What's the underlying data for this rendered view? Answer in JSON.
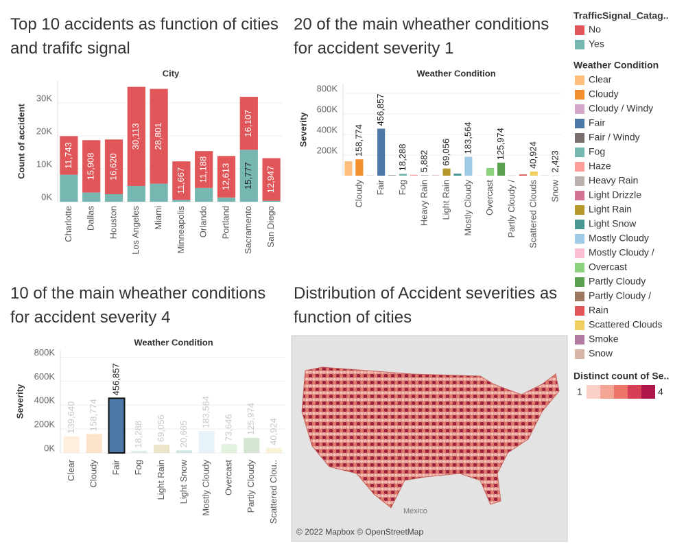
{
  "chart_data": [
    {
      "type": "stacked_bar",
      "title": "Top 10 accidents as function of cities and trafifc signal",
      "header": "City",
      "y_label": "Count of accident",
      "legend_title": "TrafficSignal_Catag..",
      "categories": [
        "Charlotte",
        "Dallas",
        "Houston",
        "Los Angeles",
        "Miami",
        "Minneapolis",
        "Orlando",
        "Portland",
        "Sacramento",
        "San Diego"
      ],
      "series": [
        {
          "name": "No",
          "color": "#e15759",
          "values": [
            11743,
            15908,
            16620,
            30113,
            28801,
            11667,
            11188,
            12613,
            16107,
            12947
          ],
          "value_labels": [
            "11,743",
            "15,908",
            "16,620",
            "30,113",
            "28,801",
            "11,667",
            "11,188",
            "12,613",
            "16,107",
            "12,947"
          ]
        },
        {
          "name": "Yes",
          "color": "#76b7b2",
          "values": [
            8200,
            2800,
            2300,
            4800,
            5500,
            600,
            4200,
            1300,
            15777,
            300
          ],
          "value_labels": [
            null,
            null,
            null,
            null,
            null,
            null,
            null,
            null,
            "15,777",
            null
          ]
        }
      ],
      "ylim": [
        0,
        36700
      ],
      "yticks": [
        {
          "value": 0,
          "label": "0K"
        },
        {
          "value": 10000,
          "label": "10K"
        },
        {
          "value": 20000,
          "label": "20K"
        },
        {
          "value": 30000,
          "label": "30K"
        }
      ],
      "grid": true
    },
    {
      "type": "bar",
      "title": "20 of the main wheather conditions for accident severity 1",
      "header": "Weather Condition",
      "y_label": "Severity",
      "categories": [
        null,
        "Cloudy",
        null,
        "Fair",
        null,
        "Fog",
        null,
        "Heavy Rain",
        null,
        "Light Rain",
        null,
        "Mostly Cloudy",
        null,
        "Overcast",
        null,
        "Partly Cloudy /",
        null,
        "Scattered Clouds",
        null,
        "Snow"
      ],
      "values": [
        139640,
        158774,
        3000,
        456857,
        4000,
        18288,
        8000,
        5882,
        3000,
        69056,
        20665,
        183564,
        2000,
        73646,
        125974,
        1500,
        12000,
        40924,
        1500,
        2423
      ],
      "value_labels": [
        null,
        "158,774",
        null,
        "456,857",
        null,
        "18,288",
        null,
        "5,882",
        null,
        "69,056",
        null,
        "183,564",
        null,
        null,
        "125,974",
        null,
        null,
        "40,924",
        null,
        "2,423"
      ],
      "legend": {
        "title": "Weather Condition",
        "items": [
          {
            "name": "Clear",
            "color": "#ffbe7d"
          },
          {
            "name": "Cloudy",
            "color": "#f28e2b"
          },
          {
            "name": "Cloudy / Windy",
            "color": "#d4a6c8"
          },
          {
            "name": "Fair",
            "color": "#4e79a7"
          },
          {
            "name": "Fair / Windy",
            "color": "#79706e"
          },
          {
            "name": "Fog",
            "color": "#76b7b2"
          },
          {
            "name": "Haze",
            "color": "#ff9d9a"
          },
          {
            "name": "Heavy Rain",
            "color": "#bab0ac"
          },
          {
            "name": "Light Drizzle",
            "color": "#d37295"
          },
          {
            "name": "Light Rain",
            "color": "#b6992d"
          },
          {
            "name": "Light Snow",
            "color": "#499894"
          },
          {
            "name": "Mostly Cloudy",
            "color": "#a0cbe8"
          },
          {
            "name": "Mostly Cloudy /",
            "color": "#fabfd2"
          },
          {
            "name": "Overcast",
            "color": "#8cd17d"
          },
          {
            "name": "Partly Cloudy",
            "color": "#59a14f"
          },
          {
            "name": "Partly Cloudy /",
            "color": "#9d7660"
          },
          {
            "name": "Rain",
            "color": "#e15759"
          },
          {
            "name": "Scattered Clouds",
            "color": "#f1ce63"
          },
          {
            "name": "Smoke",
            "color": "#b07aa1"
          },
          {
            "name": "Snow",
            "color": "#d7b5a6"
          }
        ]
      },
      "ylim": [
        0,
        893000
      ],
      "yticks": [
        {
          "value": 200000,
          "label": "200K"
        },
        {
          "value": 400000,
          "label": "400K"
        },
        {
          "value": 600000,
          "label": "600K"
        },
        {
          "value": 800000,
          "label": "800K"
        }
      ],
      "grid": true
    },
    {
      "type": "bar",
      "title": "10 of the main wheather conditions for accident severity 4",
      "header": "Weather Condition",
      "y_label": "Severity",
      "categories": [
        "Clear",
        "Cloudy",
        "Fair",
        "Fog",
        "Light Rain",
        "Light Snow",
        "Mostly Cloudy",
        "Overcast",
        "Partly Cloudy",
        "Scattered Clou.."
      ],
      "values": [
        139640,
        158774,
        456857,
        18288,
        69056,
        20665,
        183564,
        73646,
        125974,
        40924
      ],
      "value_labels": [
        "139,640",
        "158,774",
        "456,857",
        "18,288",
        "69,056",
        "20,665",
        "183,564",
        "73,646",
        "125,974",
        "40,924"
      ],
      "colors": [
        "#ffbe7d",
        "#f28e2b",
        "#4e79a7",
        "#76b7b2",
        "#b6992d",
        "#499894",
        "#a0cbe8",
        "#8cd17d",
        "#59a14f",
        "#f1ce63"
      ],
      "selected": "Fair",
      "ylim": [
        0,
        860000
      ],
      "yticks": [
        {
          "value": 0,
          "label": "0K"
        },
        {
          "value": 200000,
          "label": "200K"
        },
        {
          "value": 400000,
          "label": "400K"
        },
        {
          "value": 600000,
          "label": "600K"
        },
        {
          "value": 800000,
          "label": "800K"
        }
      ],
      "grid": true
    },
    {
      "type": "map",
      "title": "Distribution of Accident severities as function of cities",
      "place_label": "Mexico",
      "attribution": "© 2022 Mapbox © OpenStreetMap",
      "legend": {
        "title": "Distinct count of Se..",
        "min": 1,
        "max": 4,
        "colors": [
          "#fbd0c8",
          "#f5a596",
          "#ec7468",
          "#d63f56",
          "#b0174a"
        ]
      }
    }
  ]
}
